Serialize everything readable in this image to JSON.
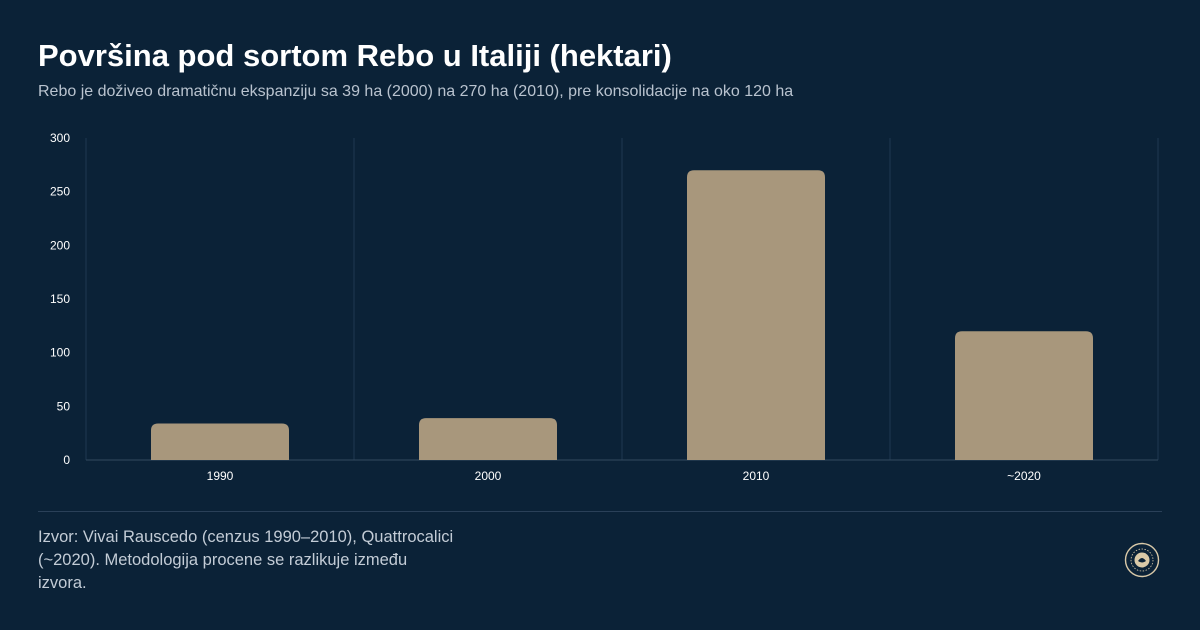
{
  "title": "Površina pod sortom Rebo u Italiji (hektari)",
  "subtitle": "Rebo je doživeo dramatičnu ekspanziju sa 39 ha (2000) na 270 ha (2010), pre konsolidacije na oko 120 ha",
  "source": "Izvor: Vivai Rauscedo (cenzus 1990–2010), Quattrocalici (~2020). Metodologija procene se razlikuje između izvora.",
  "colors": {
    "background": "#0b2237",
    "bar": "#a8977c",
    "grid": "#1f3850",
    "axis": "#33495f",
    "text_muted": "#b9c3cf"
  },
  "chart_data": {
    "type": "bar",
    "categories": [
      "1990",
      "2000",
      "2010",
      "~2020"
    ],
    "values": [
      34,
      39,
      270,
      120
    ],
    "ylim": [
      0,
      300
    ],
    "yticks": [
      0,
      50,
      100,
      150,
      200,
      250,
      300
    ],
    "xlabel": "",
    "ylabel": "",
    "grid": "vertical"
  }
}
